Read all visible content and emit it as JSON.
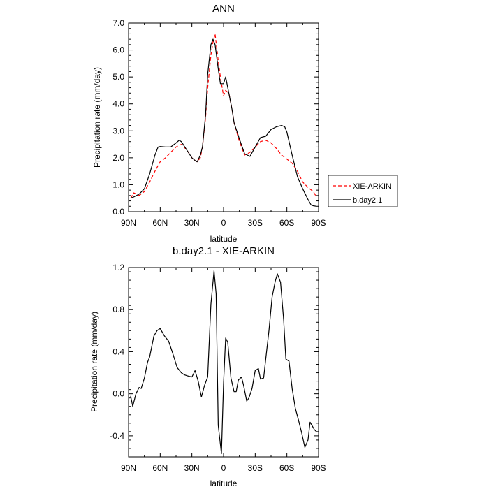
{
  "chart_data": [
    {
      "type": "line",
      "title": "ANN",
      "xlabel": "latitude",
      "ylabel": "Precipitation rate (mm/day)",
      "xlim": [
        90,
        -90
      ],
      "ylim": [
        0,
        7
      ],
      "x_ticks": [
        {
          "value": 90,
          "label": "90N"
        },
        {
          "value": 60,
          "label": "60N"
        },
        {
          "value": 30,
          "label": "30N"
        },
        {
          "value": 0,
          "label": "0"
        },
        {
          "value": -30,
          "label": "30S"
        },
        {
          "value": -60,
          "label": "60S"
        },
        {
          "value": -90,
          "label": "90S"
        }
      ],
      "y_ticks": [
        {
          "value": 0,
          "label": "0.0"
        },
        {
          "value": 1,
          "label": "1.0"
        },
        {
          "value": 2,
          "label": "2.0"
        },
        {
          "value": 3,
          "label": "3.0"
        },
        {
          "value": 4,
          "label": "4.0"
        },
        {
          "value": 5,
          "label": "5.0"
        },
        {
          "value": 6,
          "label": "6.0"
        },
        {
          "value": 7,
          "label": "7.0"
        }
      ],
      "legend_position": "right",
      "series": [
        {
          "name": "XIE-ARKIN",
          "color": "#ff0000",
          "dash": "dashed",
          "x": [
            88,
            85,
            80,
            75,
            70,
            65,
            60,
            55,
            50,
            45,
            40,
            35,
            30,
            27,
            25,
            22,
            20,
            17,
            15,
            12,
            10,
            8,
            5,
            3,
            0,
            -2,
            -5,
            -8,
            -10,
            -15,
            -20,
            -25,
            -30,
            -35,
            -40,
            -45,
            -50,
            -55,
            -60,
            -65,
            -70,
            -75,
            -80,
            -85,
            -88
          ],
          "y": [
            0.5,
            0.7,
            0.6,
            0.75,
            1.1,
            1.5,
            1.85,
            2.0,
            2.2,
            2.4,
            2.5,
            2.3,
            2.0,
            1.9,
            1.85,
            2.0,
            2.4,
            3.5,
            4.6,
            5.8,
            6.3,
            6.6,
            5.6,
            5.0,
            4.3,
            4.5,
            4.4,
            3.8,
            3.3,
            2.6,
            2.1,
            2.2,
            2.4,
            2.6,
            2.65,
            2.55,
            2.35,
            2.1,
            1.95,
            1.8,
            1.5,
            1.1,
            0.9,
            0.75,
            0.55
          ]
        },
        {
          "name": "b.day2.1",
          "color": "#000000",
          "dash": "solid",
          "x": [
            88,
            85,
            80,
            75,
            70,
            65,
            62,
            60,
            55,
            50,
            45,
            42,
            40,
            35,
            30,
            27,
            25,
            22,
            20,
            17,
            15,
            12,
            10,
            8,
            5,
            3,
            0,
            -2,
            -5,
            -8,
            -10,
            -15,
            -20,
            -25,
            -30,
            -35,
            -40,
            -45,
            -50,
            -55,
            -58,
            -60,
            -65,
            -70,
            -75,
            -80,
            -83,
            -85,
            -88
          ],
          "y": [
            0.5,
            0.55,
            0.65,
            0.85,
            1.4,
            2.1,
            2.4,
            2.42,
            2.4,
            2.4,
            2.55,
            2.65,
            2.6,
            2.3,
            2.0,
            1.9,
            1.85,
            2.1,
            2.4,
            3.6,
            5.1,
            6.2,
            6.4,
            6.2,
            5.3,
            4.75,
            4.75,
            5.0,
            4.4,
            3.8,
            3.3,
            2.7,
            2.15,
            2.05,
            2.4,
            2.75,
            2.8,
            3.05,
            3.15,
            3.2,
            3.15,
            2.95,
            2.1,
            1.3,
            0.85,
            0.45,
            0.25,
            0.22,
            0.2
          ]
        }
      ]
    },
    {
      "type": "line",
      "title": "b.day2.1 - XIE-ARKIN",
      "xlabel": "latitude",
      "ylabel": "Precipitation rate (mm/day)",
      "xlim": [
        90,
        -90
      ],
      "ylim": [
        -0.6,
        1.2
      ],
      "x_ticks": [
        {
          "value": 90,
          "label": "90N"
        },
        {
          "value": 60,
          "label": "60N"
        },
        {
          "value": 30,
          "label": "30N"
        },
        {
          "value": 0,
          "label": "0"
        },
        {
          "value": -30,
          "label": "30S"
        },
        {
          "value": -60,
          "label": "60S"
        },
        {
          "value": -90,
          "label": "90S"
        }
      ],
      "y_ticks": [
        {
          "value": -0.4,
          "label": "-0.4"
        },
        {
          "value": 0.0,
          "label": "0.0"
        },
        {
          "value": 0.4,
          "label": "0.4"
        },
        {
          "value": 0.8,
          "label": "0.8"
        },
        {
          "value": 1.2,
          "label": "1.2"
        }
      ],
      "series": [
        {
          "name": "",
          "color": "#000000",
          "dash": "solid",
          "x": [
            88,
            86,
            83,
            80,
            78,
            75,
            72,
            70,
            66,
            63,
            60,
            56,
            52,
            48,
            44,
            40,
            37,
            34,
            30,
            27,
            24,
            21,
            18,
            15,
            12,
            9,
            7,
            5,
            2,
            0,
            -2,
            -4,
            -7,
            -10,
            -12,
            -14,
            -17,
            -19,
            -22,
            -24,
            -27,
            -30,
            -33,
            -35,
            -38,
            -40,
            -43,
            -46,
            -49,
            -51,
            -54,
            -57,
            -59,
            -62,
            -65,
            -68,
            -71,
            -74,
            -77,
            -80,
            -82,
            -86,
            -88
          ],
          "y": [
            -0.02,
            -0.12,
            0.0,
            0.06,
            0.05,
            0.15,
            0.3,
            0.35,
            0.55,
            0.6,
            0.62,
            0.55,
            0.5,
            0.38,
            0.25,
            0.2,
            0.18,
            0.17,
            0.16,
            0.22,
            0.12,
            -0.03,
            0.08,
            0.16,
            0.85,
            1.17,
            0.95,
            -0.3,
            -0.57,
            0.1,
            0.53,
            0.49,
            0.15,
            0.02,
            0.02,
            0.13,
            0.16,
            0.08,
            -0.07,
            -0.04,
            0.05,
            0.22,
            0.24,
            0.14,
            0.15,
            0.33,
            0.6,
            0.92,
            1.07,
            1.14,
            1.06,
            0.7,
            0.33,
            0.31,
            0.05,
            -0.14,
            -0.25,
            -0.37,
            -0.51,
            -0.44,
            -0.27,
            -0.34,
            -0.36
          ]
        }
      ]
    }
  ]
}
